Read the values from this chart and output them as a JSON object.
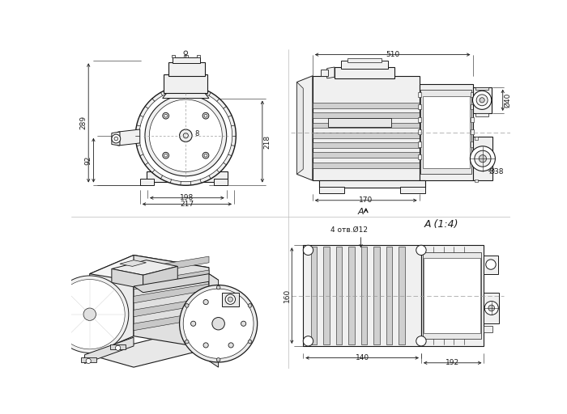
{
  "bg_color": "#ffffff",
  "lc": "#1a1a1a",
  "dc": "#1a1a1a",
  "gray_light": "#e8e8e8",
  "gray_mid": "#d0d0d0",
  "gray_dark": "#a0a0a0",
  "gray_fill": "#f0f0f0",
  "dash_color": "#999999",
  "dims": {
    "front_289": "289",
    "front_218": "218",
    "front_92": "92",
    "front_198": "198",
    "front_217": "217",
    "front_8": "8",
    "side_510": "510",
    "side_phi40": "Ø40",
    "side_phi38": "Ø38",
    "side_170": "170",
    "side_A": "A",
    "section_title": "A (1:4)",
    "section_holes": "4 отв.Ø12",
    "section_160": "160",
    "section_140": "140",
    "section_192": "192"
  }
}
